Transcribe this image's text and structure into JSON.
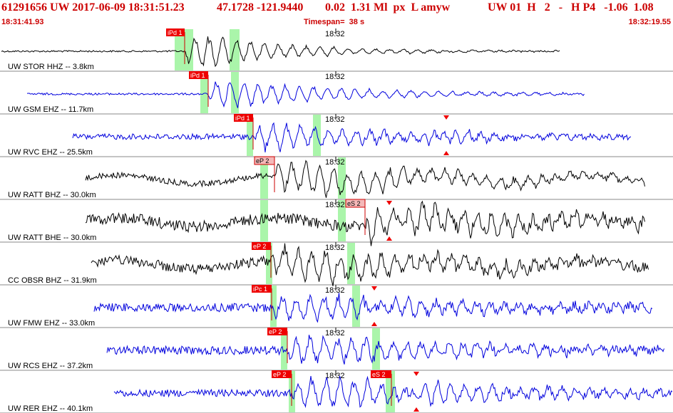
{
  "header": {
    "event_id": "61291656 UW 2017-06-09 18:31:51.23",
    "location": "47.1728 -121.9440",
    "magnitude": "0.02  1.31 Ml  px  L amyw",
    "station_info": "UW 01  H   2   -   H P4   -1.06  1.08",
    "start_time": "18:31:41.93",
    "timespan": "Timespan=  38 s",
    "end_time": "18:32:19.55"
  },
  "colors": {
    "header_text": "#cc0000",
    "trace_blue": "#0000dd",
    "trace_black": "#000000",
    "pick_flag": "#ee0000",
    "pick_flag_light": "#f4b8b8",
    "window_green": "#aaf5aa",
    "grid": "#888888"
  },
  "minute_label": "18:32",
  "traces": [
    {
      "label": "UW STOR HHZ -- 3.8km",
      "color": "black",
      "picks": [
        {
          "text": "iPd 1",
          "type": "P",
          "style": "solid"
        }
      ],
      "s_marker": false
    },
    {
      "label": "UW GSM EHZ -- 11.7km",
      "color": "blue",
      "picks": [
        {
          "text": "iPd 1",
          "type": "P",
          "style": "solid"
        }
      ],
      "s_marker": false
    },
    {
      "label": "UW RVC EHZ -- 25.5km",
      "color": "blue",
      "picks": [
        {
          "text": "iPd 1",
          "type": "P",
          "style": "solid"
        }
      ],
      "s_marker": true
    },
    {
      "label": "UW RATT BHZ -- 30.0km",
      "color": "black",
      "picks": [
        {
          "text": "eP 2",
          "type": "P",
          "style": "light"
        }
      ],
      "s_marker": false
    },
    {
      "label": "UW RATT BHE -- 30.0km",
      "color": "black",
      "picks": [
        {
          "text": "eS 2",
          "type": "S",
          "style": "light"
        }
      ],
      "s_marker": true
    },
    {
      "label": "CC OBSR BHZ -- 31.9km",
      "color": "black",
      "picks": [
        {
          "text": "eP 2",
          "type": "P",
          "style": "solid"
        }
      ],
      "s_marker": false
    },
    {
      "label": "UW FMW EHZ -- 33.0km",
      "color": "blue",
      "picks": [
        {
          "text": "iPc 1",
          "type": "P",
          "style": "solid"
        }
      ],
      "s_marker": true
    },
    {
      "label": "UW RCS EHZ -- 37.2km",
      "color": "blue",
      "picks": [
        {
          "text": "eP 2",
          "type": "P",
          "style": "solid"
        }
      ],
      "s_marker": false
    },
    {
      "label": "UW RER EHZ -- 40.1km",
      "color": "blue",
      "picks": [
        {
          "text": "eP 2",
          "type": "P",
          "style": "solid"
        },
        {
          "text": "eS 2",
          "type": "S",
          "style": "solid"
        }
      ],
      "s_marker": true
    }
  ]
}
